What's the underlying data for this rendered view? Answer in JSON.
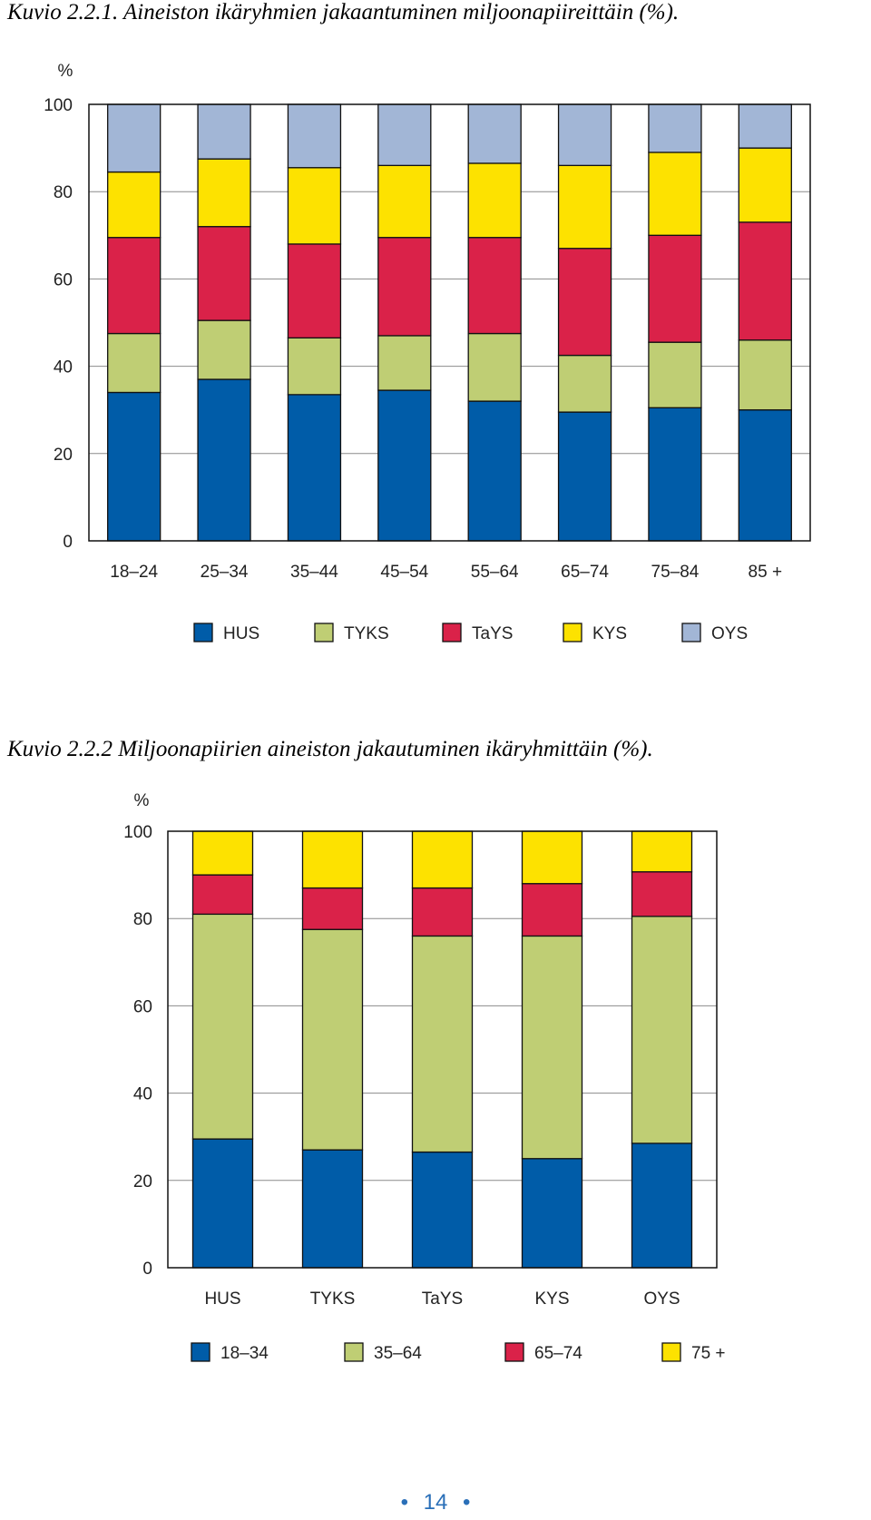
{
  "page": {
    "number": "14",
    "bullet": "•"
  },
  "chart_data": [
    {
      "type": "bar",
      "stacked": true,
      "caption": "Kuvio 2.2.1. Aineiston ikäryhmien jakaantuminen miljoonapiireittäin (%).",
      "unit_label": "%",
      "ylim": [
        0,
        100
      ],
      "yticks": [
        0,
        20,
        40,
        60,
        80,
        100
      ],
      "grid": true,
      "legend_position": "bottom",
      "categories": [
        "18–24",
        "25–34",
        "35–44",
        "45–54",
        "55–64",
        "65–74",
        "75–84",
        "85 +"
      ],
      "series": [
        {
          "name": "HUS",
          "color": "#005ca8",
          "values": [
            34,
            37,
            33.5,
            34.5,
            32,
            29.5,
            30.5,
            30
          ]
        },
        {
          "name": "TYKS",
          "color": "#bfce74",
          "values": [
            13.5,
            13.5,
            13,
            12.5,
            15.5,
            13,
            15,
            16
          ]
        },
        {
          "name": "TaYS",
          "color": "#da2249",
          "values": [
            22,
            21.5,
            21.5,
            22.5,
            22,
            24.5,
            24.5,
            27
          ]
        },
        {
          "name": "KYS",
          "color": "#fde200",
          "values": [
            15,
            15.5,
            17.5,
            16.5,
            17,
            19,
            19,
            17
          ]
        },
        {
          "name": "OYS",
          "color": "#a2b6d6",
          "values": [
            15.5,
            12.5,
            14.5,
            14,
            13.5,
            14,
            11,
            10
          ]
        }
      ]
    },
    {
      "type": "bar",
      "stacked": true,
      "caption": "Kuvio 2.2.2 Miljoonapiirien aineiston jakautuminen ikäryhmittäin (%).",
      "unit_label": "%",
      "ylim": [
        0,
        100
      ],
      "yticks": [
        0,
        20,
        40,
        60,
        80,
        100
      ],
      "grid": true,
      "legend_position": "bottom",
      "categories": [
        "HUS",
        "TYKS",
        "TaYS",
        "KYS",
        "OYS"
      ],
      "series": [
        {
          "name": "18–34",
          "color": "#005ca8",
          "values": [
            29.5,
            27,
            26.5,
            25,
            28.5
          ]
        },
        {
          "name": "35–64",
          "color": "#bfce74",
          "values": [
            51.5,
            50.5,
            49.5,
            51,
            52
          ]
        },
        {
          "name": "65–74",
          "color": "#da2249",
          "values": [
            9,
            9.5,
            11,
            12,
            10.2
          ]
        },
        {
          "name": "75 +",
          "color": "#fde200",
          "values": [
            10,
            13,
            13,
            12,
            9.3
          ]
        }
      ]
    }
  ]
}
